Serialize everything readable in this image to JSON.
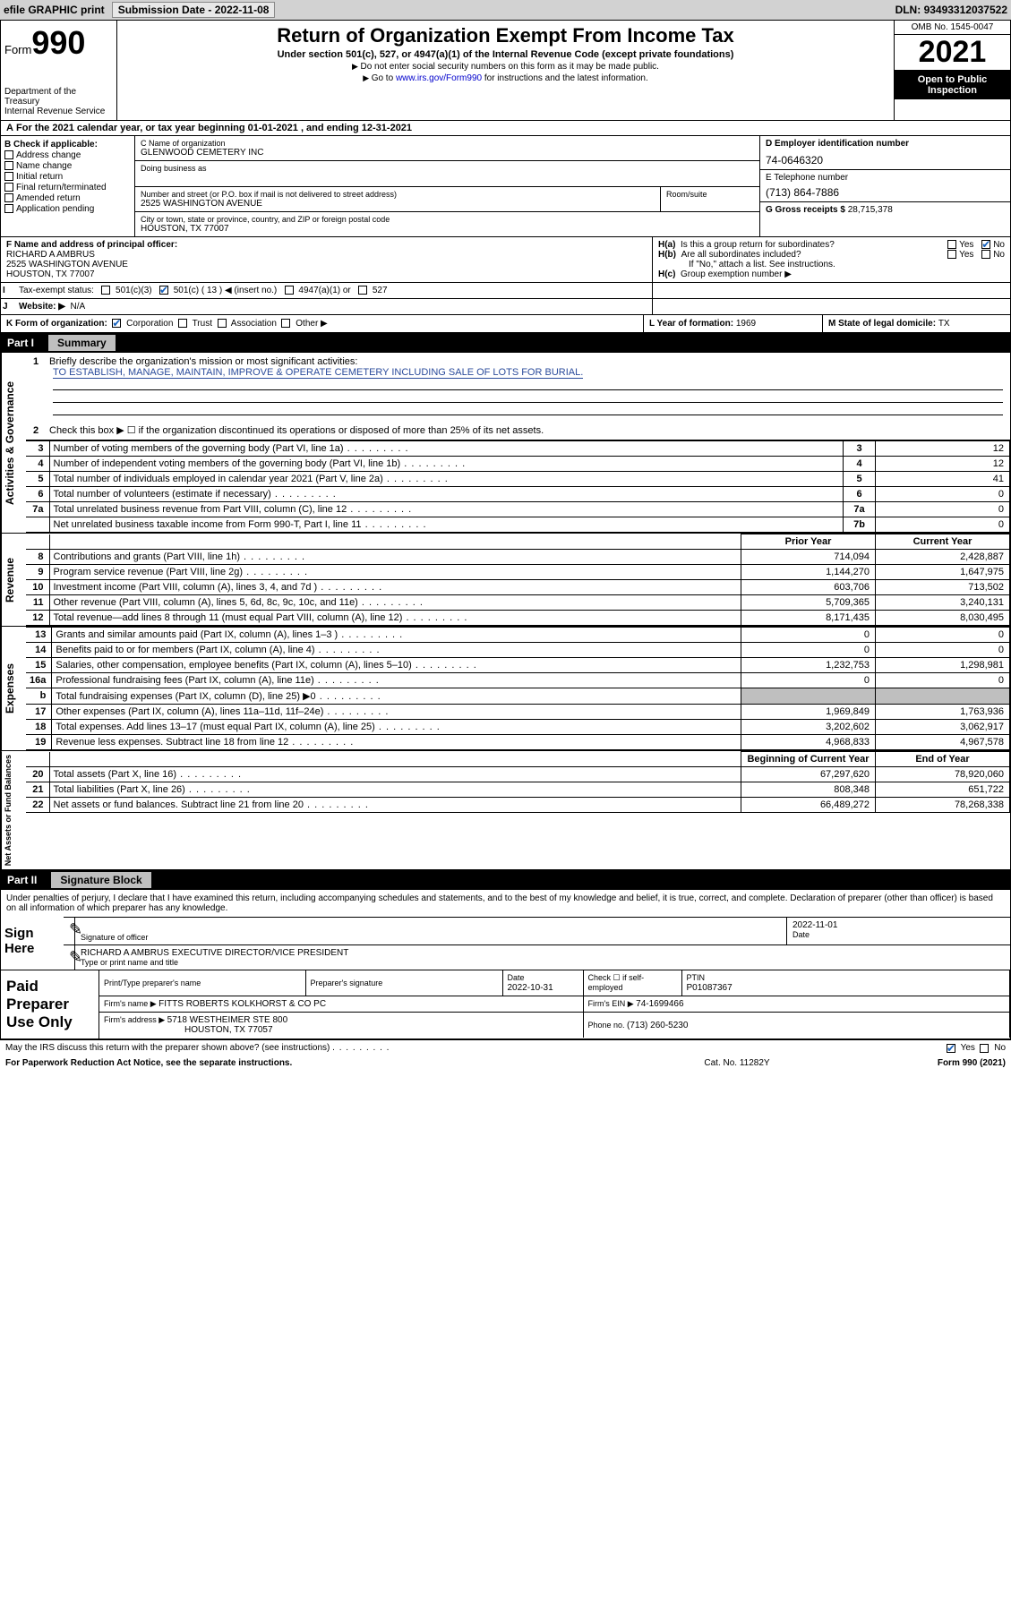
{
  "topbar": {
    "efile": "efile GRAPHIC print",
    "subdate_lbl": "Submission Date - ",
    "subdate": "2022-11-08",
    "dln_lbl": "DLN: ",
    "dln": "93493312037522"
  },
  "header": {
    "form_prefix": "Form",
    "form_num": "990",
    "dept": "Department of the Treasury",
    "irs": "Internal Revenue Service",
    "title": "Return of Organization Exempt From Income Tax",
    "sub": "Under section 501(c), 527, or 4947(a)(1) of the Internal Revenue Code (except private foundations)",
    "note1": "Do not enter social security numbers on this form as it may be made public.",
    "note2_a": "Go to ",
    "note2_link": "www.irs.gov/Form990",
    "note2_b": " for instructions and the latest information.",
    "omb": "OMB No. 1545-0047",
    "year": "2021",
    "open_pub": "Open to Public Inspection"
  },
  "row_a": "For the 2021 calendar year, or tax year beginning 01-01-2021   , and ending 12-31-2021",
  "section_b": {
    "lbl": "B Check if applicable:",
    "opts": [
      "Address change",
      "Name change",
      "Initial return",
      "Final return/terminated",
      "Amended return",
      "Application pending"
    ],
    "c_name_lbl": "C Name of organization",
    "c_name": "GLENWOOD CEMETERY INC",
    "dba_lbl": "Doing business as",
    "addr_lbl": "Number and street (or P.O. box if mail is not delivered to street address)",
    "room_lbl": "Room/suite",
    "addr": "2525 WASHINGTON AVENUE",
    "city_lbl": "City or town, state or province, country, and ZIP or foreign postal code",
    "city": "HOUSTON, TX  77007",
    "d_lbl": "D Employer identification number",
    "d_val": "74-0646320",
    "e_lbl": "E Telephone number",
    "e_val": "(713) 864-7886",
    "g_lbl": "G Gross receipts $ ",
    "g_val": "28,715,378"
  },
  "section_f": {
    "lbl": "F  Name and address of principal officer:",
    "name": "RICHARD A AMBRUS",
    "addr1": "2525 WASHINGTON AVENUE",
    "addr2": "HOUSTON, TX  77007",
    "ha": "Is this a group return for subordinates?",
    "hb": "Are all subordinates included?",
    "hb_note": "If \"No,\" attach a list. See instructions.",
    "hc": "Group exemption number ▶",
    "ha_lbl": "H(a)",
    "hb_lbl": "H(b)",
    "hc_lbl": "H(c)"
  },
  "row_i": {
    "lbl": "Tax-exempt status:",
    "o1": "501(c)(3)",
    "o2a": "501(c) ( 13 ) ◀ (insert no.)",
    "o3": "4947(a)(1) or",
    "o4": "527"
  },
  "row_j": {
    "lbl": "Website: ▶",
    "val": "N/A"
  },
  "row_k": {
    "lbl": "K Form of organization:",
    "o1": "Corporation",
    "o2": "Trust",
    "o3": "Association",
    "o4": "Other ▶",
    "l_lbl": "L Year of formation: ",
    "l_val": "1969",
    "m_lbl": "M State of legal domicile: ",
    "m_val": "TX"
  },
  "part1": {
    "hdr_num": "Part I",
    "hdr_title": "Summary",
    "q1_lbl": "Briefly describe the organization's mission or most significant activities:",
    "q1_val": "TO ESTABLISH, MANAGE, MAINTAIN, IMPROVE & OPERATE CEMETERY INCLUDING SALE OF LOTS FOR BURIAL.",
    "q2": "Check this box ▶ ☐  if the organization discontinued its operations or disposed of more than 25% of its net assets.",
    "vtab_ag": "Activities & Governance",
    "vtab_rev": "Revenue",
    "vtab_exp": "Expenses",
    "vtab_na": "Net Assets or Fund Balances",
    "hdr_prior": "Prior Year",
    "hdr_curr": "Current Year",
    "hdr_boy": "Beginning of Current Year",
    "hdr_eoy": "End of Year",
    "rows_ag": [
      {
        "n": "3",
        "d": "Number of voting members of the governing body (Part VI, line 1a)",
        "b": "3",
        "v": "12"
      },
      {
        "n": "4",
        "d": "Number of independent voting members of the governing body (Part VI, line 1b)",
        "b": "4",
        "v": "12"
      },
      {
        "n": "5",
        "d": "Total number of individuals employed in calendar year 2021 (Part V, line 2a)",
        "b": "5",
        "v": "41"
      },
      {
        "n": "6",
        "d": "Total number of volunteers (estimate if necessary)",
        "b": "6",
        "v": "0"
      },
      {
        "n": "7a",
        "d": "Total unrelated business revenue from Part VIII, column (C), line 12",
        "b": "7a",
        "v": "0"
      },
      {
        "n": "",
        "d": "Net unrelated business taxable income from Form 990-T, Part I, line 11",
        "b": "7b",
        "v": "0"
      }
    ],
    "rows_rev": [
      {
        "n": "8",
        "d": "Contributions and grants (Part VIII, line 1h)",
        "p": "714,094",
        "c": "2,428,887"
      },
      {
        "n": "9",
        "d": "Program service revenue (Part VIII, line 2g)",
        "p": "1,144,270",
        "c": "1,647,975"
      },
      {
        "n": "10",
        "d": "Investment income (Part VIII, column (A), lines 3, 4, and 7d )",
        "p": "603,706",
        "c": "713,502"
      },
      {
        "n": "11",
        "d": "Other revenue (Part VIII, column (A), lines 5, 6d, 8c, 9c, 10c, and 11e)",
        "p": "5,709,365",
        "c": "3,240,131"
      },
      {
        "n": "12",
        "d": "Total revenue—add lines 8 through 11 (must equal Part VIII, column (A), line 12)",
        "p": "8,171,435",
        "c": "8,030,495"
      }
    ],
    "rows_exp": [
      {
        "n": "13",
        "d": "Grants and similar amounts paid (Part IX, column (A), lines 1–3 )",
        "p": "0",
        "c": "0"
      },
      {
        "n": "14",
        "d": "Benefits paid to or for members (Part IX, column (A), line 4)",
        "p": "0",
        "c": "0"
      },
      {
        "n": "15",
        "d": "Salaries, other compensation, employee benefits (Part IX, column (A), lines 5–10)",
        "p": "1,232,753",
        "c": "1,298,981"
      },
      {
        "n": "16a",
        "d": "Professional fundraising fees (Part IX, column (A), line 11e)",
        "p": "0",
        "c": "0"
      },
      {
        "n": "b",
        "d": "Total fundraising expenses (Part IX, column (D), line 25) ▶0",
        "p": "",
        "c": "",
        "shade": true
      },
      {
        "n": "17",
        "d": "Other expenses (Part IX, column (A), lines 11a–11d, 11f–24e)",
        "p": "1,969,849",
        "c": "1,763,936"
      },
      {
        "n": "18",
        "d": "Total expenses. Add lines 13–17 (must equal Part IX, column (A), line 25)",
        "p": "3,202,602",
        "c": "3,062,917"
      },
      {
        "n": "19",
        "d": "Revenue less expenses. Subtract line 18 from line 12",
        "p": "4,968,833",
        "c": "4,967,578"
      }
    ],
    "rows_na": [
      {
        "n": "20",
        "d": "Total assets (Part X, line 16)",
        "p": "67,297,620",
        "c": "78,920,060"
      },
      {
        "n": "21",
        "d": "Total liabilities (Part X, line 26)",
        "p": "808,348",
        "c": "651,722"
      },
      {
        "n": "22",
        "d": "Net assets or fund balances. Subtract line 21 from line 20",
        "p": "66,489,272",
        "c": "78,268,338"
      }
    ]
  },
  "part2": {
    "hdr_num": "Part II",
    "hdr_title": "Signature Block",
    "decl": "Under penalties of perjury, I declare that I have examined this return, including accompanying schedules and statements, and to the best of my knowledge and belief, it is true, correct, and complete. Declaration of preparer (other than officer) is based on all information of which preparer has any knowledge.",
    "sign_here": "Sign Here",
    "sig_officer_lbl": "Signature of officer",
    "date_lbl": "Date",
    "date_val": "2022-11-01",
    "name_title": "RICHARD A AMBRUS  EXECUTIVE DIRECTOR/VICE PRESIDENT",
    "name_title_lbl": "Type or print name and title"
  },
  "paid": {
    "lbl": "Paid Preparer Use Only",
    "h1": "Print/Type preparer's name",
    "h2": "Preparer's signature",
    "h3": "Date",
    "h3v": "2022-10-31",
    "h4": "Check ☐ if self-employed",
    "h5": "PTIN",
    "h5v": "P01087367",
    "firm_name_lbl": "Firm's name    ▶ ",
    "firm_name": "FITTS ROBERTS KOLKHORST & CO PC",
    "firm_ein_lbl": "Firm's EIN ▶ ",
    "firm_ein": "74-1699466",
    "firm_addr_lbl": "Firm's address ▶ ",
    "firm_addr1": "5718 WESTHEIMER STE 800",
    "firm_addr2": "HOUSTON, TX  77057",
    "phone_lbl": "Phone no. ",
    "phone": "(713) 260-5230"
  },
  "footer": {
    "discuss": "May the IRS discuss this return with the preparer shown above? (see instructions)",
    "paperwork": "For Paperwork Reduction Act Notice, see the separate instructions.",
    "cat": "Cat. No. 11282Y",
    "formno": "Form 990 (2021)"
  },
  "colors": {
    "topbar_bg": "#d2d2d2",
    "link": "#0000cc",
    "check": "#1560bd",
    "shade": "#bfbfbf"
  }
}
